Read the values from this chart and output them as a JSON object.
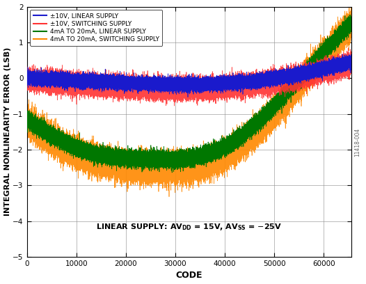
{
  "xlabel": "CODE",
  "ylabel": "INTEGRAL NONLINEARITY ERROR (LSB)",
  "xlim": [
    0,
    65536
  ],
  "ylim": [
    -5,
    2
  ],
  "yticks": [
    -5,
    -4,
    -3,
    -2,
    -1,
    0,
    1,
    2
  ],
  "xticks": [
    0,
    10000,
    20000,
    30000,
    40000,
    50000,
    60000
  ],
  "watermark": "11418-004",
  "colors": {
    "pm10_linear": "#1a1acc",
    "pm10_switching": "#ff3333",
    "4ma_linear": "#007700",
    "4ma_switching": "#ff8800"
  },
  "noise_pm10_linear": 0.08,
  "noise_pm10_switching": 0.13,
  "noise_4ma_linear": 0.1,
  "noise_4ma_switching": 0.18,
  "seed": 42,
  "legend_labels": [
    "±10V, LINEAR SUPPLY",
    "±10V, SWITCHING SUPPLY",
    "4mA TO 20mA, LINEAR SUPPLY",
    "4mA TO 20mA, SWITCHING SUPPLY"
  ]
}
